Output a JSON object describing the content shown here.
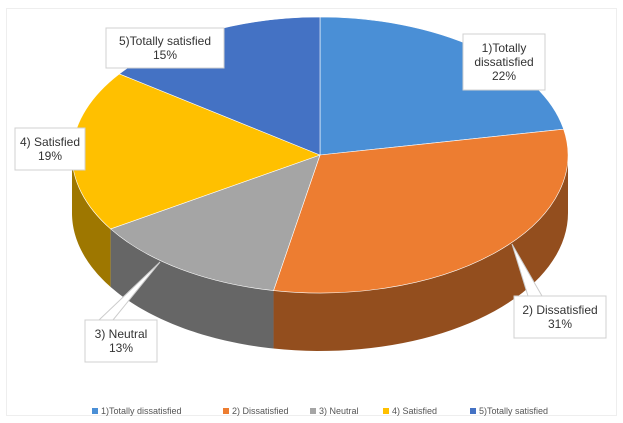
{
  "chart_data": {
    "type": "pie",
    "variant": "3d",
    "categories": [
      "1)Totally dissatisfied",
      "2) Dissatisfied",
      "3) Neutral",
      "4) Satisfied",
      "5)Totally satisfied"
    ],
    "values": [
      22,
      31,
      13,
      19,
      15
    ],
    "unit": "%",
    "colors": [
      "#4a8fd6",
      "#ed7d31",
      "#a5a5a5",
      "#ffc000",
      "#4472c4"
    ],
    "slice_labels": [
      {
        "lines": [
          "1)Totally",
          "dissatisfied"
        ],
        "value": "22%"
      },
      {
        "lines": [
          "2) Dissatisfied"
        ],
        "value": "31%"
      },
      {
        "lines": [
          "3) Neutral"
        ],
        "value": "13%"
      },
      {
        "lines": [
          "4) Satisfied"
        ],
        "value": "19%"
      },
      {
        "lines": [
          "5)Totally satisfied"
        ],
        "value": "15%"
      }
    ],
    "legend": {
      "position": "bottom",
      "entries": [
        "1)Totally dissatisfied",
        "2) Dissatisfied",
        "3) Neutral",
        "4) Satisfied",
        "5)Totally satisfied"
      ]
    }
  }
}
